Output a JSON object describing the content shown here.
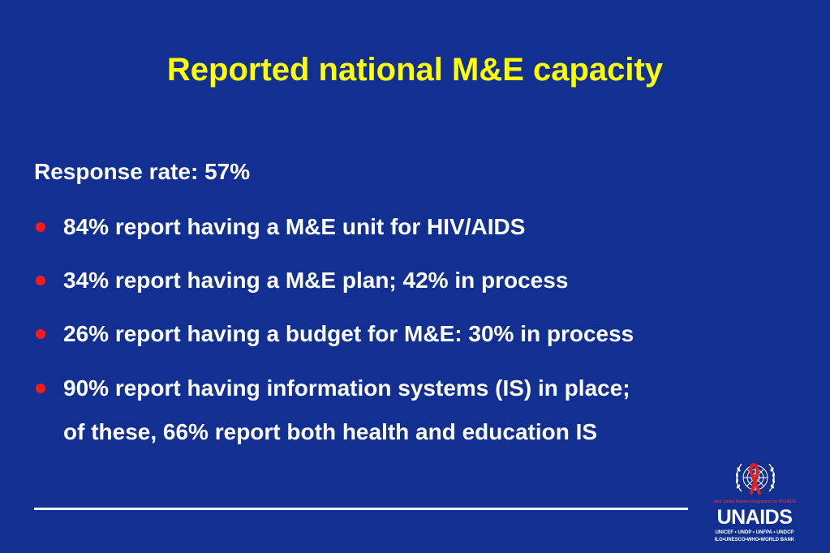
{
  "slide": {
    "title": "Reported national M&E capacity",
    "lead": "Response rate: 57%",
    "bullets": [
      {
        "text": "84% report having a M&E unit for HIV/AIDS"
      },
      {
        "text": "34% report having a M&E plan; 42% in process"
      },
      {
        "text": "26% report having a budget for M&E: 30% in process"
      },
      {
        "line1": "90% report having information systems (IS) in place;",
        "line2": "of these, 66% report both health and education IS"
      }
    ]
  },
  "logo": {
    "tagline": "Joint United Nations Programme on HIV/AIDS",
    "wordmark": "UNAIDS",
    "cosponsors_line1": "UNICEF • UNDP • UNFPA • UNDCP",
    "cosponsors_line2": "ILO•UNESCO•WHO•WORLD BANK",
    "emblem_icon": "un-emblem-red-ribbon-icon"
  },
  "colors": {
    "background": "#123092",
    "title": "#FFFF00",
    "text": "#FFFFFF",
    "bullet": "#FF1A1A",
    "ribbon": "#E02020"
  }
}
